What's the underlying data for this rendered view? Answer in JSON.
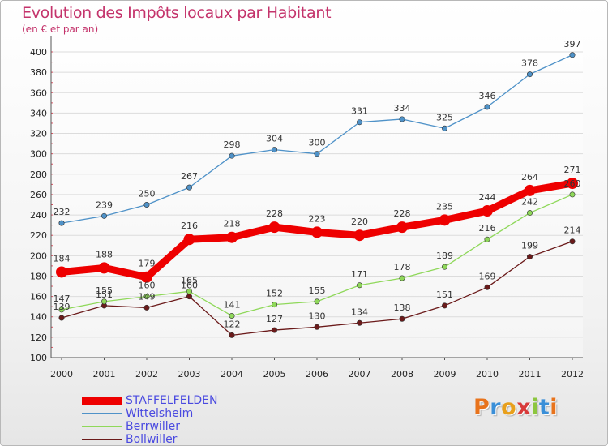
{
  "header": {
    "title": "Evolution des Impôts locaux par Habitant",
    "subtitle": "(en € et par an)"
  },
  "logo": {
    "letters": [
      "P",
      "r",
      "o",
      "x",
      "i",
      "t",
      "i"
    ],
    "colors": [
      "#e8731c",
      "#3a8fd8",
      "#e8a01c",
      "#d83a3a",
      "#8cc63f",
      "#3a8fd8",
      "#e8731c"
    ]
  },
  "chart_data": {
    "type": "line",
    "title": "Evolution des Impôts locaux par Habitant",
    "subtitle": "(en € et par an)",
    "xlabel": "",
    "ylabel": "",
    "x": [
      "2000",
      "2001",
      "2002",
      "2003",
      "2004",
      "2005",
      "2006",
      "2007",
      "2008",
      "2009",
      "2010",
      "2011",
      "2012"
    ],
    "ylim": [
      100,
      400
    ],
    "yticks": [
      100,
      120,
      140,
      160,
      180,
      200,
      220,
      240,
      260,
      280,
      300,
      320,
      340,
      360,
      380,
      400
    ],
    "grid": "horizontal",
    "legend": "bottom-left",
    "series": [
      {
        "name": "STAFFELFELDEN",
        "color": "#ee0000",
        "values": [
          184,
          188,
          179,
          216,
          218,
          228,
          223,
          220,
          228,
          235,
          244,
          264,
          271
        ],
        "labels": [
          "184",
          "188",
          "179",
          "216",
          "218",
          "228",
          "223",
          "220",
          "228",
          "235",
          "244",
          "264",
          "271"
        ]
      },
      {
        "name": "Wittelsheim",
        "color": "#4f92c8",
        "values": [
          232,
          239,
          250,
          267,
          298,
          304,
          300,
          331,
          334,
          325,
          346,
          378,
          397
        ],
        "labels": [
          "232",
          "239",
          "250",
          "267",
          "298",
          "304",
          "300",
          "331",
          "334",
          "325",
          "346",
          "378",
          "397"
        ]
      },
      {
        "name": "Berrwiller",
        "color": "#8fd85a",
        "values": [
          147,
          155,
          160,
          165,
          141,
          152,
          155,
          171,
          178,
          189,
          216,
          242,
          260
        ],
        "labels": [
          "147",
          "155",
          "160",
          "165",
          "141",
          "152",
          "155",
          "171",
          "178",
          "189",
          "216",
          "242",
          "260"
        ]
      },
      {
        "name": "Bollwiller",
        "color": "#6b1a1a",
        "values": [
          139,
          151,
          149,
          160,
          122,
          127,
          130,
          134,
          138,
          151,
          169,
          199,
          214
        ],
        "labels": [
          "139",
          "151",
          "149",
          "160",
          "122",
          "127",
          "130",
          "134",
          "138",
          "151",
          "169",
          "199",
          "214"
        ]
      }
    ]
  }
}
